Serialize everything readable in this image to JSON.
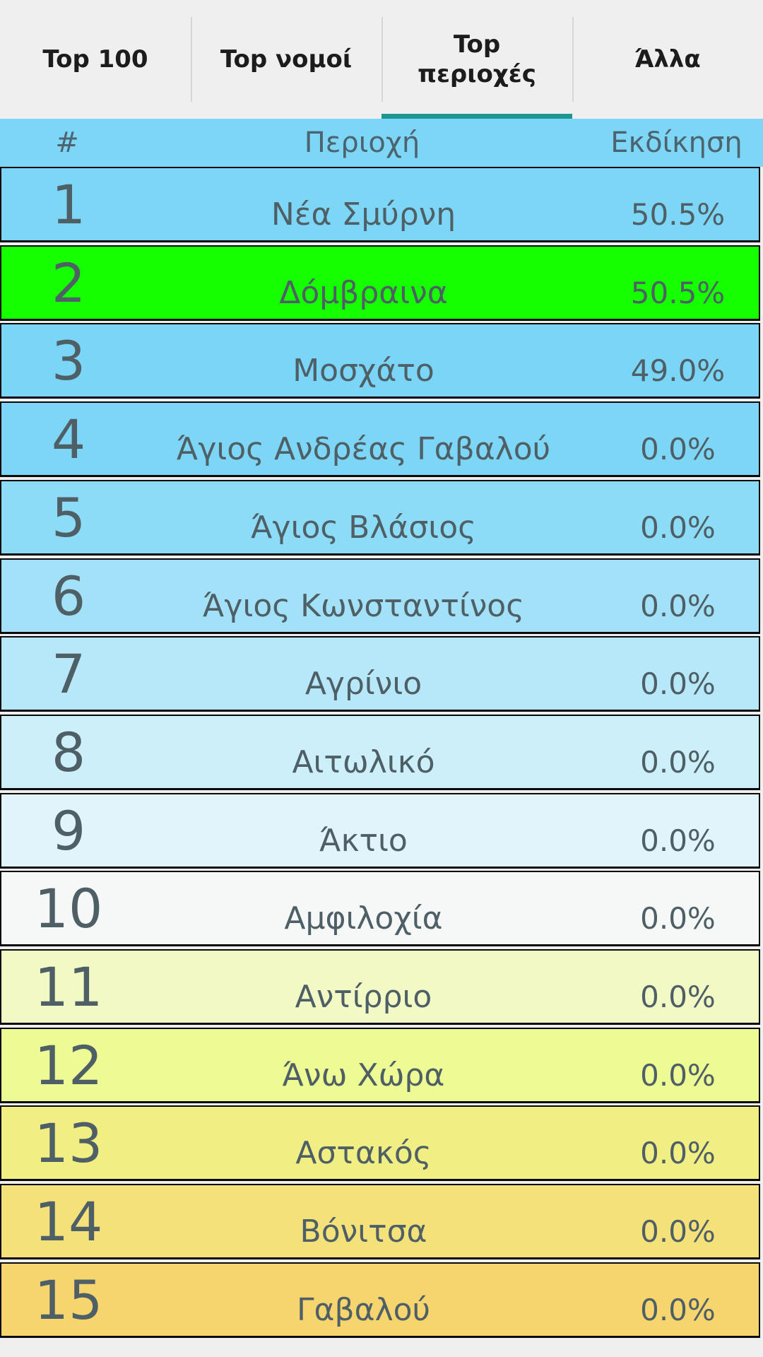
{
  "tabs": [
    {
      "label": "Top 100",
      "active": false
    },
    {
      "label": "Top νομοί",
      "active": false
    },
    {
      "label": "Top\nπεριοχές",
      "active": true
    },
    {
      "label": "Άλλα",
      "active": false
    }
  ],
  "table": {
    "headers": {
      "num": "#",
      "area": "Περιοχή",
      "revenge": "Εκδίκηση"
    },
    "rows": [
      {
        "num": "1",
        "area": "Νέα Σμύρνη",
        "value": "50.5%",
        "bg": "#7dd6f6"
      },
      {
        "num": "2",
        "area": "Δόμβραινα",
        "value": "50.5%",
        "bg": "#16ff00"
      },
      {
        "num": "3",
        "area": "Μοσχάτο",
        "value": "49.0%",
        "bg": "#7ad5f6"
      },
      {
        "num": "4",
        "area": "Άγιος Ανδρέας Γαβαλού",
        "value": "0.0%",
        "bg": "#7dd6f6"
      },
      {
        "num": "5",
        "area": "Άγιος Βλάσιος",
        "value": "0.0%",
        "bg": "#8cdbf7"
      },
      {
        "num": "6",
        "area": "Άγιος Κωνσταντίνος",
        "value": "0.0%",
        "bg": "#a2e1f8"
      },
      {
        "num": "7",
        "area": "Αγρίνιο",
        "value": "0.0%",
        "bg": "#b6e8f9"
      },
      {
        "num": "8",
        "area": "Αιτωλικό",
        "value": "0.0%",
        "bg": "#cdeffa"
      },
      {
        "num": "9",
        "area": "Άκτιο",
        "value": "0.0%",
        "bg": "#e2f4fb"
      },
      {
        "num": "10",
        "area": "Αμφιλοχία",
        "value": "0.0%",
        "bg": "#f6f8f8"
      },
      {
        "num": "11",
        "area": "Αντίρριο",
        "value": "0.0%",
        "bg": "#f3f9c4"
      },
      {
        "num": "12",
        "area": "Άνω Χώρα",
        "value": "0.0%",
        "bg": "#eefa93"
      },
      {
        "num": "13",
        "area": "Αστακός",
        "value": "0.0%",
        "bg": "#f1ef84"
      },
      {
        "num": "14",
        "area": "Βόνιτσα",
        "value": "0.0%",
        "bg": "#f5e17a"
      },
      {
        "num": "15",
        "area": "Γαβαλού",
        "value": "0.0%",
        "bg": "#f6d46e"
      }
    ]
  }
}
